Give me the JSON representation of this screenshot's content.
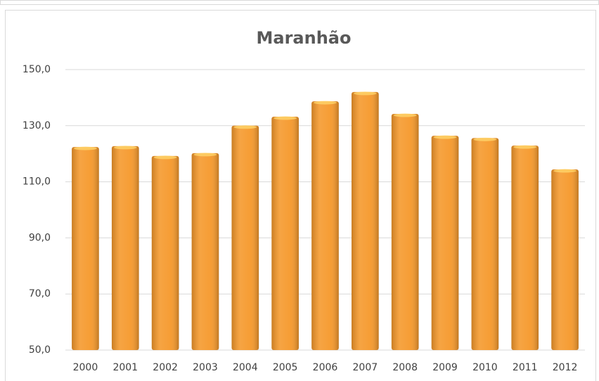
{
  "chart_data": {
    "type": "bar",
    "title": "Maranhão",
    "categories": [
      "2000",
      "2001",
      "2002",
      "2003",
      "2004",
      "2005",
      "2006",
      "2007",
      "2008",
      "2009",
      "2010",
      "2011",
      "2012"
    ],
    "values": [
      122.4,
      122.7,
      119.2,
      120.2,
      130.0,
      133.2,
      138.7,
      142.0,
      134.2,
      126.4,
      125.6,
      122.9,
      114.4
    ],
    "color": "#f5982a",
    "ylim": [
      50,
      150
    ],
    "yticks": [
      {
        "value": 50,
        "label": "50,0"
      },
      {
        "value": 70,
        "label": "70,0"
      },
      {
        "value": 90,
        "label": "90,0"
      },
      {
        "value": 110,
        "label": "110,0"
      },
      {
        "value": 130,
        "label": "130,0"
      },
      {
        "value": 150,
        "label": "150,0"
      }
    ],
    "grid": true
  }
}
